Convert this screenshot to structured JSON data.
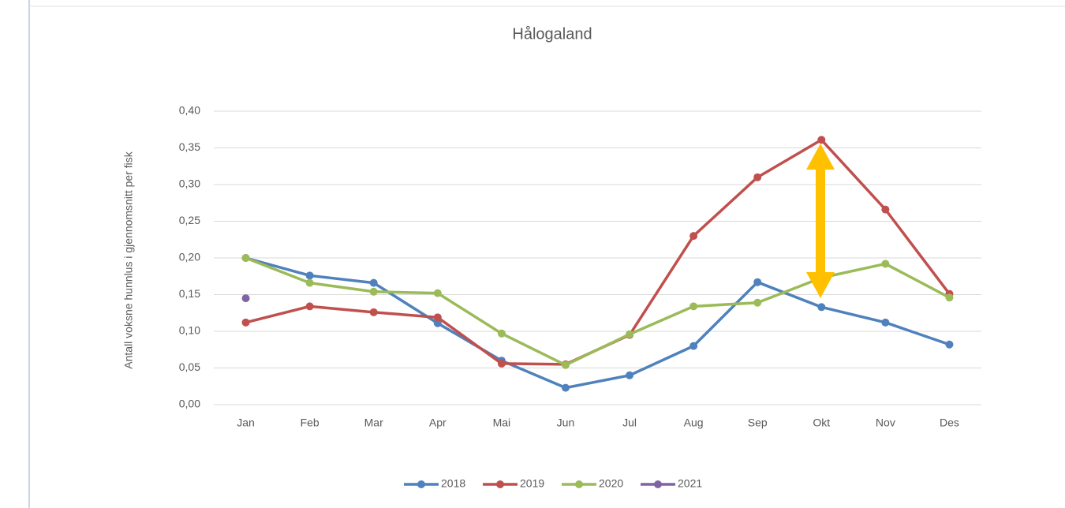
{
  "chart_data": {
    "type": "line",
    "title": "Hålogaland",
    "y_label": "Antall voksne hunnlus i gjennomsnitt per fisk",
    "categories": [
      "Jan",
      "Feb",
      "Mar",
      "Apr",
      "Mai",
      "Jun",
      "Jul",
      "Aug",
      "Sep",
      "Okt",
      "Nov",
      "Des"
    ],
    "series": [
      {
        "name": "2018",
        "color": "#4f81bd",
        "values": [
          0.2,
          0.176,
          0.166,
          0.111,
          0.06,
          0.023,
          0.04,
          0.08,
          0.167,
          0.133,
          0.112,
          0.082
        ]
      },
      {
        "name": "2019",
        "color": "#c0504d",
        "values": [
          0.112,
          0.134,
          0.126,
          0.119,
          0.056,
          0.055,
          0.095,
          0.23,
          0.31,
          0.361,
          0.266,
          0.151
        ]
      },
      {
        "name": "2020",
        "color": "#9bbb59",
        "values": [
          0.2,
          0.166,
          0.154,
          0.152,
          0.097,
          0.054,
          0.096,
          0.134,
          0.139,
          0.173,
          0.192,
          0.146
        ]
      },
      {
        "name": "2021",
        "color": "#8064a2",
        "values": [
          0.145,
          null,
          null,
          null,
          null,
          null,
          null,
          null,
          null,
          null,
          null,
          null
        ]
      }
    ],
    "ylim": [
      0,
      0.4
    ],
    "yticks": [
      {
        "value": 0,
        "label": "0,00"
      },
      {
        "value": 0.05,
        "label": "0,05"
      },
      {
        "value": 0.1,
        "label": "0,10"
      },
      {
        "value": 0.15,
        "label": "0,15"
      },
      {
        "value": 0.2,
        "label": "0,20"
      },
      {
        "value": 0.25,
        "label": "0,25"
      },
      {
        "value": 0.3,
        "label": "0,30"
      },
      {
        "value": 0.35,
        "label": "0,35"
      },
      {
        "value": 0.4,
        "label": "0,40"
      }
    ],
    "grid": true
  }
}
